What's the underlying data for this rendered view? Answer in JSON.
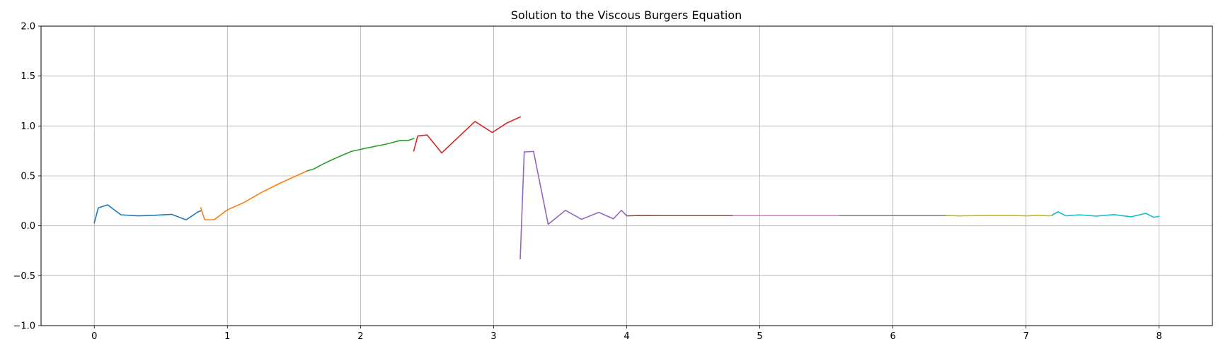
{
  "chart_data": {
    "type": "line",
    "title": "Solution to the Viscous Burgers Equation",
    "xlabel": "",
    "ylabel": "",
    "xlim": [
      -0.4,
      8.4
    ],
    "ylim": [
      -1.0,
      2.0
    ],
    "x_ticks": [
      "0",
      "1",
      "2",
      "3",
      "4",
      "5",
      "6",
      "7",
      "8"
    ],
    "y_ticks": [
      "2.0",
      "1.5",
      "1.0",
      "0.5",
      "0.0",
      "−0.5",
      "−1.0"
    ],
    "grid": true,
    "legend": "none",
    "series": [
      {
        "color": "#1f77b4",
        "points": [
          [
            0.0,
            0.03
          ],
          [
            0.03,
            0.18
          ],
          [
            0.1,
            0.21
          ],
          [
            0.2,
            0.11
          ],
          [
            0.33,
            0.1
          ],
          [
            0.45,
            0.105
          ],
          [
            0.58,
            0.115
          ],
          [
            0.69,
            0.06
          ],
          [
            0.78,
            0.14
          ],
          [
            0.8,
            0.15
          ]
        ]
      },
      {
        "color": "#ff7f0e",
        "points": [
          [
            0.8,
            0.18
          ],
          [
            0.83,
            0.06
          ],
          [
            0.9,
            0.06
          ],
          [
            1.0,
            0.16
          ],
          [
            1.12,
            0.23
          ],
          [
            1.25,
            0.33
          ],
          [
            1.4,
            0.43
          ],
          [
            1.6,
            0.55
          ]
        ]
      },
      {
        "color": "#2ca02c",
        "points": [
          [
            1.6,
            0.55
          ],
          [
            1.65,
            0.57
          ],
          [
            1.72,
            0.62
          ],
          [
            1.8,
            0.67
          ],
          [
            1.93,
            0.745
          ],
          [
            2.05,
            0.78
          ],
          [
            2.2,
            0.82
          ],
          [
            2.3,
            0.855
          ],
          [
            2.36,
            0.855
          ],
          [
            2.4,
            0.875
          ]
        ]
      },
      {
        "color": "#d62728",
        "points": [
          [
            2.4,
            0.75
          ],
          [
            2.43,
            0.9
          ],
          [
            2.5,
            0.91
          ],
          [
            2.61,
            0.73
          ],
          [
            2.86,
            1.045
          ],
          [
            2.99,
            0.935
          ],
          [
            3.1,
            1.03
          ],
          [
            3.2,
            1.09
          ]
        ]
      },
      {
        "color": "#9467bd",
        "points": [
          [
            3.2,
            -0.33
          ],
          [
            3.23,
            0.74
          ],
          [
            3.3,
            0.745
          ],
          [
            3.41,
            0.015
          ],
          [
            3.54,
            0.155
          ],
          [
            3.66,
            0.065
          ],
          [
            3.79,
            0.135
          ],
          [
            3.9,
            0.07
          ],
          [
            3.96,
            0.155
          ],
          [
            4.0,
            0.1
          ]
        ]
      },
      {
        "color": "#8c564b",
        "points": [
          [
            4.0,
            0.1
          ],
          [
            4.1,
            0.103
          ],
          [
            4.3,
            0.102
          ],
          [
            4.5,
            0.102
          ],
          [
            4.8,
            0.102
          ]
        ]
      },
      {
        "color": "#e377c2",
        "points": [
          [
            4.8,
            0.102
          ],
          [
            5.2,
            0.102
          ],
          [
            5.6,
            0.102
          ]
        ]
      },
      {
        "color": "#7f7f7f",
        "points": [
          [
            5.6,
            0.102
          ],
          [
            6.0,
            0.102
          ],
          [
            6.4,
            0.102
          ]
        ]
      },
      {
        "color": "#bcbd22",
        "points": [
          [
            6.4,
            0.103
          ],
          [
            6.5,
            0.1
          ],
          [
            6.7,
            0.103
          ],
          [
            6.9,
            0.103
          ],
          [
            7.0,
            0.1
          ],
          [
            7.1,
            0.105
          ],
          [
            7.17,
            0.1
          ],
          [
            7.2,
            0.105
          ]
        ]
      },
      {
        "color": "#17becf",
        "points": [
          [
            7.2,
            0.11
          ],
          [
            7.24,
            0.14
          ],
          [
            7.3,
            0.1
          ],
          [
            7.4,
            0.11
          ],
          [
            7.53,
            0.097
          ],
          [
            7.66,
            0.112
          ],
          [
            7.79,
            0.09
          ],
          [
            7.9,
            0.125
          ],
          [
            7.96,
            0.085
          ],
          [
            8.0,
            0.095
          ]
        ]
      }
    ]
  }
}
